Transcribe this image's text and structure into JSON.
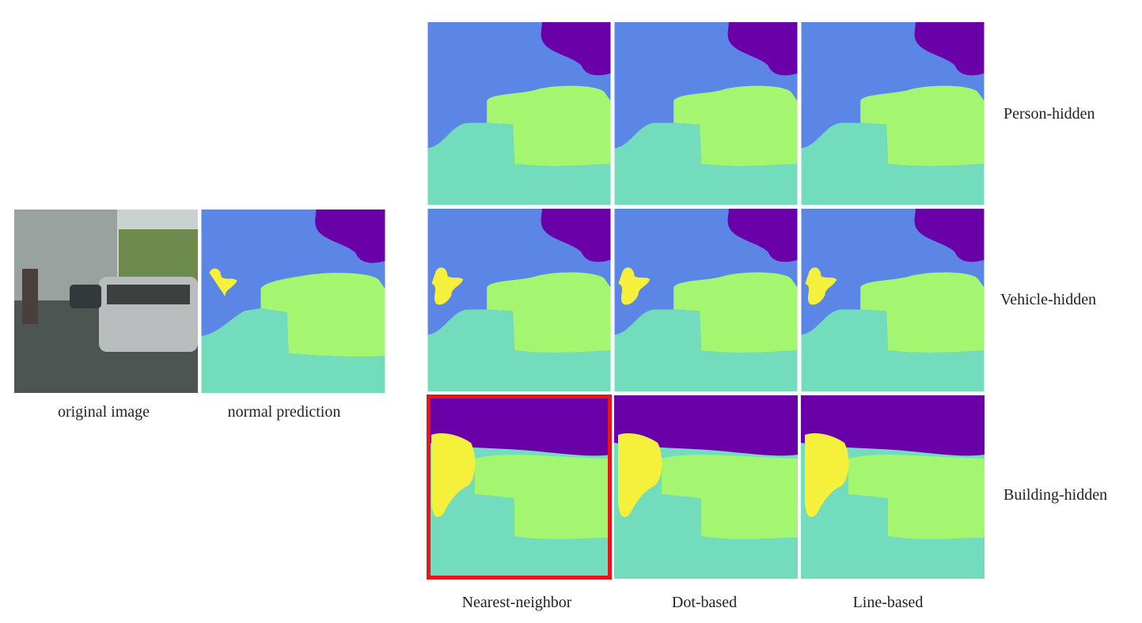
{
  "figure": {
    "inputs": [
      {
        "label": "original image"
      },
      {
        "label": "normal prediction"
      }
    ],
    "columns": [
      "Nearest-neighbor",
      "Dot-based",
      "Line-based"
    ],
    "rows": [
      "Person-hidden",
      "Vehicle-hidden",
      "Building-hidden"
    ]
  }
}
